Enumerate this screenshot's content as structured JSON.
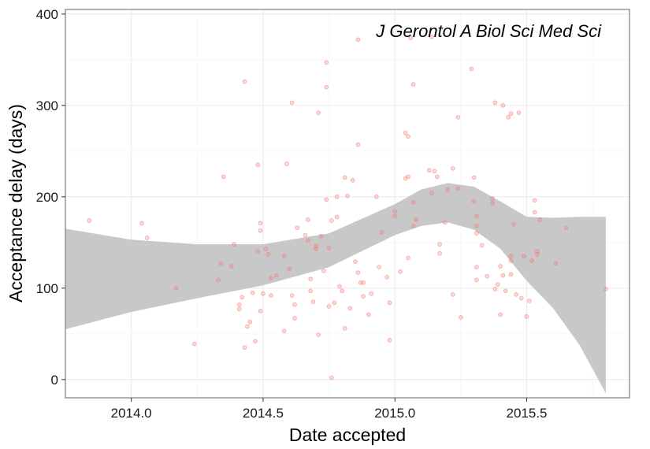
{
  "chart_data": {
    "type": "scatter",
    "title": "",
    "annotation": "J Gerontol A Biol Sci Med Sci",
    "xlabel": "Date accepted",
    "ylabel": "Acceptance delay (days)",
    "xlim": [
      2013.75,
      2015.89
    ],
    "ylim": [
      -20,
      405
    ],
    "x_ticks": [
      2014.0,
      2014.5,
      2015.0,
      2015.5
    ],
    "x_tick_labels": [
      "2014.0",
      "2014.5",
      "2015.0",
      "2015.5"
    ],
    "y_ticks": [
      0,
      100,
      200,
      300,
      400
    ],
    "y_tick_labels": [
      "0",
      "100",
      "200",
      "300",
      "400"
    ],
    "grid": true,
    "colors": {
      "points": "#f8766d",
      "band": "#c8c8c8",
      "border": "#7f7f7f",
      "grid": "#ebebeb"
    },
    "smooth_band": {
      "x": [
        2013.75,
        2014.0,
        2014.25,
        2014.5,
        2014.75,
        2015.0,
        2015.1,
        2015.2,
        2015.3,
        2015.4,
        2015.5,
        2015.6,
        2015.7,
        2015.8
      ],
      "upper": [
        165,
        153,
        148,
        148,
        160,
        192,
        208,
        215,
        211,
        195,
        178,
        177,
        178,
        178
      ],
      "lower": [
        55,
        74,
        89,
        103,
        123,
        158,
        168,
        172,
        164,
        143,
        108,
        78,
        38,
        -15
      ]
    },
    "points": [
      [
        2013.84,
        174
      ],
      [
        2014.04,
        171
      ],
      [
        2014.06,
        155
      ],
      [
        2014.17,
        100
      ],
      [
        2014.24,
        39
      ],
      [
        2014.33,
        109
      ],
      [
        2014.34,
        127
      ],
      [
        2014.35,
        222
      ],
      [
        2014.38,
        124
      ],
      [
        2014.39,
        148
      ],
      [
        2014.41,
        82
      ],
      [
        2014.41,
        77
      ],
      [
        2014.42,
        90
      ],
      [
        2014.43,
        326
      ],
      [
        2014.43,
        35
      ],
      [
        2014.44,
        58
      ],
      [
        2014.45,
        63
      ],
      [
        2014.46,
        95
      ],
      [
        2014.47,
        42
      ],
      [
        2014.48,
        140
      ],
      [
        2014.48,
        235
      ],
      [
        2014.49,
        171
      ],
      [
        2014.49,
        163
      ],
      [
        2014.49,
        75
      ],
      [
        2014.5,
        94
      ],
      [
        2014.51,
        143
      ],
      [
        2014.52,
        137
      ],
      [
        2014.53,
        92
      ],
      [
        2014.53,
        111
      ],
      [
        2014.55,
        114
      ],
      [
        2014.58,
        135
      ],
      [
        2014.58,
        53
      ],
      [
        2014.59,
        236
      ],
      [
        2014.6,
        121
      ],
      [
        2014.61,
        303
      ],
      [
        2014.61,
        92
      ],
      [
        2014.62,
        82
      ],
      [
        2014.62,
        67
      ],
      [
        2014.63,
        166
      ],
      [
        2014.66,
        158
      ],
      [
        2014.67,
        175
      ],
      [
        2014.67,
        152
      ],
      [
        2014.68,
        110
      ],
      [
        2014.68,
        97
      ],
      [
        2014.69,
        85
      ],
      [
        2014.7,
        146
      ],
      [
        2014.7,
        143
      ],
      [
        2014.71,
        292
      ],
      [
        2014.71,
        49
      ],
      [
        2014.72,
        157
      ],
      [
        2014.73,
        119
      ],
      [
        2014.74,
        347
      ],
      [
        2014.74,
        320
      ],
      [
        2014.74,
        197
      ],
      [
        2014.75,
        144
      ],
      [
        2014.75,
        80
      ],
      [
        2014.76,
        2
      ],
      [
        2014.76,
        174
      ],
      [
        2014.77,
        84
      ],
      [
        2014.78,
        178
      ],
      [
        2014.78,
        200
      ],
      [
        2014.79,
        102
      ],
      [
        2014.8,
        97
      ],
      [
        2014.81,
        56
      ],
      [
        2014.81,
        221
      ],
      [
        2014.82,
        201
      ],
      [
        2014.83,
        78
      ],
      [
        2014.84,
        218
      ],
      [
        2014.85,
        129
      ],
      [
        2014.86,
        372
      ],
      [
        2014.86,
        257
      ],
      [
        2014.86,
        117
      ],
      [
        2014.87,
        106
      ],
      [
        2014.88,
        106
      ],
      [
        2014.88,
        91
      ],
      [
        2014.9,
        71
      ],
      [
        2014.91,
        94
      ],
      [
        2014.93,
        200
      ],
      [
        2014.94,
        123
      ],
      [
        2014.95,
        161
      ],
      [
        2014.97,
        112
      ],
      [
        2014.98,
        43
      ],
      [
        2014.98,
        84
      ],
      [
        2015.0,
        184
      ],
      [
        2015.0,
        179
      ],
      [
        2015.02,
        118
      ],
      [
        2015.04,
        220
      ],
      [
        2015.04,
        270
      ],
      [
        2015.05,
        266
      ],
      [
        2015.05,
        222
      ],
      [
        2015.05,
        133
      ],
      [
        2015.06,
        374
      ],
      [
        2015.07,
        323
      ],
      [
        2015.07,
        194
      ],
      [
        2015.07,
        168
      ],
      [
        2015.08,
        175
      ],
      [
        2015.13,
        229
      ],
      [
        2015.14,
        204
      ],
      [
        2015.14,
        375
      ],
      [
        2015.15,
        228
      ],
      [
        2015.16,
        222
      ],
      [
        2015.17,
        138
      ],
      [
        2015.17,
        148
      ],
      [
        2015.19,
        172
      ],
      [
        2015.2,
        208
      ],
      [
        2015.22,
        231
      ],
      [
        2015.22,
        93
      ],
      [
        2015.24,
        209
      ],
      [
        2015.24,
        287
      ],
      [
        2015.25,
        68
      ],
      [
        2015.29,
        340
      ],
      [
        2015.3,
        221
      ],
      [
        2015.3,
        195
      ],
      [
        2015.31,
        179
      ],
      [
        2015.31,
        168
      ],
      [
        2015.31,
        160
      ],
      [
        2015.31,
        123
      ],
      [
        2015.31,
        109
      ],
      [
        2015.33,
        147
      ],
      [
        2015.35,
        113
      ],
      [
        2015.37,
        198
      ],
      [
        2015.37,
        193
      ],
      [
        2015.38,
        303
      ],
      [
        2015.38,
        99
      ],
      [
        2015.39,
        104
      ],
      [
        2015.4,
        124
      ],
      [
        2015.4,
        71
      ],
      [
        2015.41,
        300
      ],
      [
        2015.41,
        114
      ],
      [
        2015.42,
        97
      ],
      [
        2015.43,
        287
      ],
      [
        2015.44,
        291
      ],
      [
        2015.44,
        135
      ],
      [
        2015.44,
        130
      ],
      [
        2015.44,
        115
      ],
      [
        2015.45,
        170
      ],
      [
        2015.46,
        93
      ],
      [
        2015.47,
        292
      ],
      [
        2015.48,
        89
      ],
      [
        2015.49,
        135
      ],
      [
        2015.5,
        69
      ],
      [
        2015.51,
        86
      ],
      [
        2015.52,
        130
      ],
      [
        2015.53,
        183
      ],
      [
        2015.53,
        196
      ],
      [
        2015.54,
        140
      ],
      [
        2015.54,
        137
      ],
      [
        2015.55,
        175
      ],
      [
        2015.61,
        127
      ],
      [
        2015.65,
        166
      ],
      [
        2015.8,
        99
      ]
    ]
  }
}
